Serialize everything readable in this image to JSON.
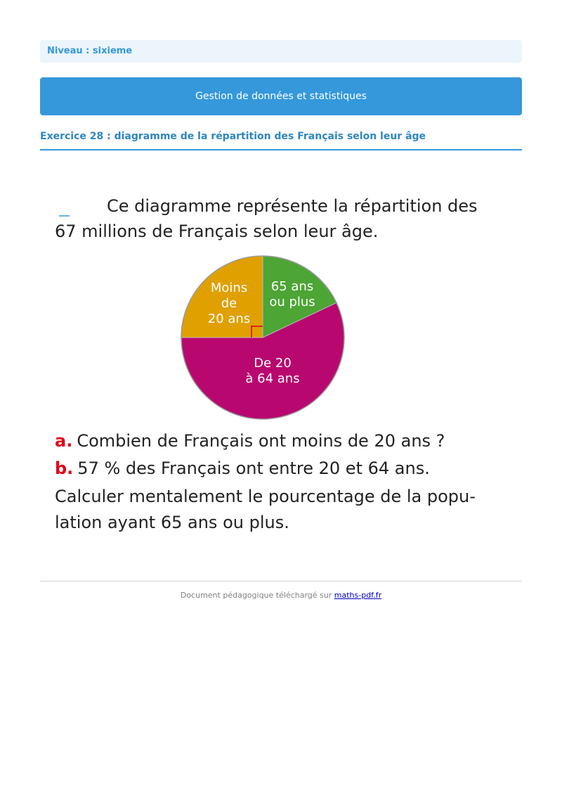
{
  "level": {
    "label": "Niveau : sixieme"
  },
  "banner": {
    "title": "Gestion de données et statistiques"
  },
  "exercise": {
    "title": "Exercice 28 : diagramme de la répartition des Français selon leur âge"
  },
  "problem": {
    "intro_line1": "Ce diagramme représente la répartition des",
    "intro_line2": "67 millions de Français selon leur âge.",
    "question_a_marker": "a.",
    "question_a_text": "Combien de Français ont moins de 20 ans ?",
    "question_b_marker": "b.",
    "question_b_text": "57 % des Français ont entre 20 et 64 ans.",
    "instruction_line1": "Calculer mentalement le pourcentage de la popu-",
    "instruction_line2": "lation ayant 65 ans ou plus."
  },
  "pie": {
    "slice_under20": {
      "line1": "Moins",
      "line2": "de",
      "line3": "20 ans",
      "color": "#e0a000",
      "degrees": 90
    },
    "slice_65plus": {
      "line1": "65 ans",
      "line2": "ou plus",
      "color": "#4ca534",
      "degrees": 64.8
    },
    "slice_20to64": {
      "line1": "De 20",
      "line2": "à 64 ans",
      "color": "#b8086f",
      "degrees": 205.2
    }
  },
  "colors": {
    "accent": "#3498db",
    "marker_red": "#e3001b"
  },
  "footer": {
    "text": "Document pédagogique téléchargé sur",
    "link_label": "maths-pdf.fr"
  }
}
